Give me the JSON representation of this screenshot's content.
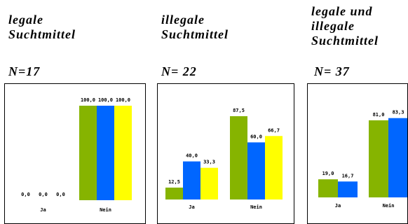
{
  "colors": {
    "green": "#86b400",
    "blue": "#0066ff",
    "yellow": "#ffff00"
  },
  "chart_data": [
    {
      "type": "bar",
      "title": "legale\nSuchtmittel",
      "n_label": "N=17",
      "categories": [
        "Ja",
        "Nein"
      ],
      "series": [
        {
          "values": [
            0.0,
            100.0
          ],
          "value_labels": [
            "0,0",
            "100,0"
          ]
        },
        {
          "values": [
            0.0,
            100.0
          ],
          "value_labels": [
            "0,0",
            "100,0"
          ]
        },
        {
          "values": [
            0.0,
            100.0
          ],
          "value_labels": [
            "0,0",
            "100,0"
          ]
        }
      ],
      "ylim": [
        0,
        100
      ]
    },
    {
      "type": "bar",
      "title": "illegale\nSuchtmittel",
      "n_label": "N= 22",
      "categories": [
        "Ja",
        "Nein"
      ],
      "series": [
        {
          "values": [
            12.5,
            87.5
          ],
          "value_labels": [
            "12,5",
            "87,5"
          ]
        },
        {
          "values": [
            40.0,
            60.0
          ],
          "value_labels": [
            "40,0",
            "60,0"
          ]
        },
        {
          "values": [
            33.3,
            66.7
          ],
          "value_labels": [
            "33,3",
            "66,7"
          ]
        }
      ],
      "ylim": [
        0,
        100
      ]
    },
    {
      "type": "bar",
      "title": "legale und\nillegale\nSuchtmittel",
      "n_label": "N= 37",
      "categories": [
        "Ja",
        "Nein"
      ],
      "series": [
        {
          "values": [
            19.0,
            81.0
          ],
          "value_labels": [
            "19,0",
            "81,0"
          ]
        },
        {
          "values": [
            16.7,
            83.3
          ],
          "value_labels": [
            "16,7",
            "83,3"
          ]
        }
      ],
      "ylim": [
        0,
        100
      ]
    }
  ]
}
